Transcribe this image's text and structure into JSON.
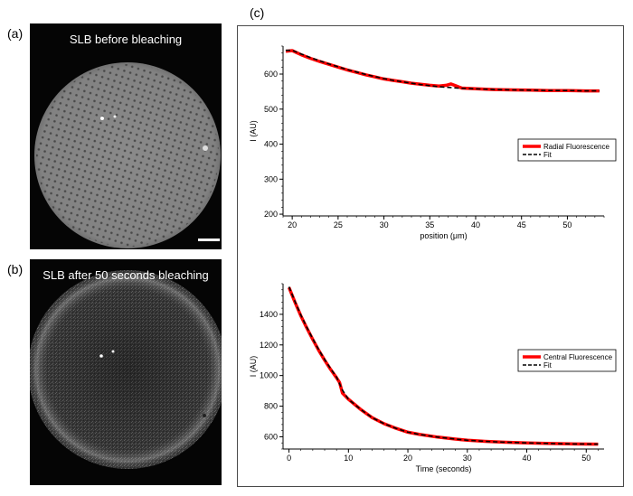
{
  "panels": {
    "a": {
      "label": "(a)",
      "title": "SLB before bleaching"
    },
    "b": {
      "label": "(b)",
      "title": "SLB after 50 seconds  bleaching"
    },
    "c": {
      "label": "(c)"
    }
  },
  "colors": {
    "data": "#ff0000",
    "fit": "#000000",
    "frame": "#4a4a4a"
  },
  "chart_data": [
    {
      "type": "line",
      "xlabel": "position (μm)",
      "ylabel": "I (AU)",
      "xlim": [
        19,
        54
      ],
      "ylim": [
        195,
        680
      ],
      "xticks": [
        20,
        25,
        30,
        35,
        40,
        45,
        50
      ],
      "yticks": [
        200,
        300,
        400,
        500,
        600
      ],
      "legend": {
        "position": "right",
        "entries": [
          "Radial Fluorescence",
          "Fit"
        ]
      },
      "series": [
        {
          "name": "Radial Fluorescence",
          "style": "thick-red",
          "x": [
            19.3,
            20,
            21,
            22,
            23,
            24,
            25,
            26,
            27,
            28,
            29,
            30,
            31,
            32,
            33,
            34,
            35,
            36,
            36.8,
            37.3,
            37.8,
            38.5,
            40,
            42,
            44,
            46,
            48,
            50,
            52,
            53.5
          ],
          "y": [
            665,
            667,
            655,
            645,
            636,
            628,
            620,
            612,
            605,
            598,
            592,
            586,
            582,
            578,
            574,
            571,
            568,
            566,
            568,
            572,
            567,
            560,
            558,
            556,
            555,
            554,
            553,
            553,
            552,
            552
          ]
        },
        {
          "name": "Fit",
          "style": "dashed-black",
          "x": [
            19.3,
            20,
            21,
            22,
            23,
            24,
            25,
            26,
            27,
            28,
            29,
            30,
            31,
            32,
            33,
            34,
            35,
            36,
            37,
            38,
            40,
            42,
            44,
            46,
            48,
            50,
            52,
            53.5
          ],
          "y": [
            668,
            668,
            657,
            647,
            638,
            629,
            621,
            613,
            606,
            599,
            593,
            587,
            582,
            578,
            574,
            570,
            567,
            564,
            562,
            560,
            558,
            556,
            555,
            554,
            553,
            553,
            552,
            552
          ]
        }
      ]
    },
    {
      "type": "line",
      "xlabel": "Time (seconds)",
      "ylabel": "I (AU)",
      "xlim": [
        -1,
        53
      ],
      "ylim": [
        520,
        1600
      ],
      "xticks": [
        0,
        10,
        20,
        30,
        40,
        50
      ],
      "yticks": [
        600,
        800,
        1000,
        1200,
        1400
      ],
      "legend": {
        "position": "right",
        "entries": [
          "Central Fluorescence",
          "Fit"
        ]
      },
      "series": [
        {
          "name": "Central Fluorescence",
          "style": "thick-red",
          "x": [
            0,
            1,
            2,
            3,
            4,
            5,
            6,
            7,
            8,
            8.5,
            9,
            10,
            12,
            14,
            16,
            18,
            20,
            22,
            25,
            28,
            30,
            33,
            36,
            40,
            44,
            48,
            52
          ],
          "y": [
            1575,
            1480,
            1390,
            1310,
            1235,
            1165,
            1100,
            1040,
            985,
            955,
            885,
            845,
            780,
            725,
            685,
            655,
            630,
            615,
            598,
            585,
            577,
            570,
            565,
            560,
            556,
            553,
            552
          ]
        },
        {
          "name": "Fit",
          "style": "dashed-black",
          "x": [
            0,
            1,
            2,
            3,
            4,
            5,
            6,
            7,
            8,
            9,
            10,
            12,
            14,
            16,
            18,
            20,
            22,
            25,
            28,
            30,
            33,
            36,
            40,
            44,
            48,
            52
          ],
          "y": [
            1580,
            1485,
            1395,
            1315,
            1240,
            1170,
            1105,
            1045,
            990,
            905,
            845,
            780,
            725,
            685,
            655,
            630,
            615,
            598,
            585,
            577,
            570,
            565,
            560,
            556,
            553,
            552
          ]
        }
      ]
    }
  ]
}
